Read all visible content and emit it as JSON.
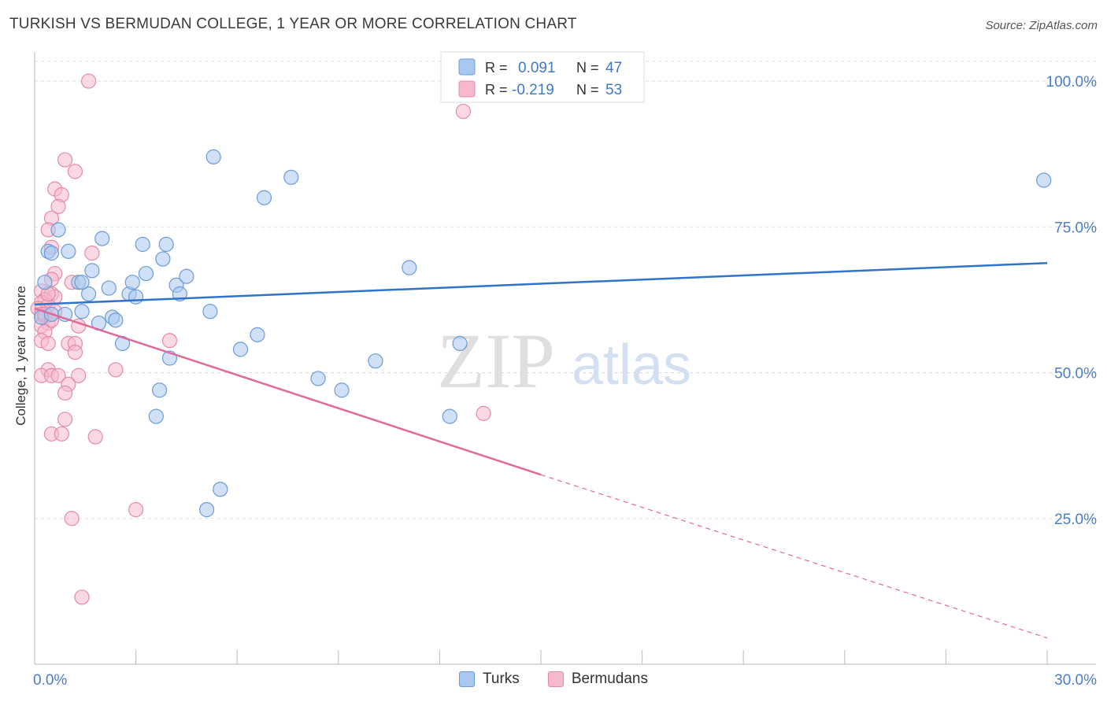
{
  "title": "TURKISH VS BERMUDAN COLLEGE, 1 YEAR OR MORE CORRELATION CHART",
  "source": "Source: ZipAtlas.com",
  "watermark": {
    "zip": "ZIP",
    "atlas": "atlas"
  },
  "colors": {
    "turks_fill": "#a9c8f0",
    "turks_stroke": "#6b9bd6",
    "turks_line": "#2f74c9",
    "berm_fill": "#f6b9cc",
    "berm_stroke": "#e48aa8",
    "berm_line": "#e0699a",
    "axis_label": "#4a7cc8",
    "grid": "#dddddd"
  },
  "stats_legend": [
    {
      "series": "Turks",
      "r_label": "R =",
      "r_value": "0.091",
      "n_label": "N =",
      "n_value": "47"
    },
    {
      "series": "Bermudans",
      "r_label": "R =",
      "r_value": "-0.219",
      "n_label": "N =",
      "n_value": "53"
    }
  ],
  "bottom_legend": [
    "Turks",
    "Bermudans"
  ],
  "chart_data": {
    "type": "scatter",
    "xlabel": "",
    "ylabel": "College, 1 year or more",
    "xlim": [
      0,
      30
    ],
    "ylim": [
      0,
      105
    ],
    "x_tick_labels": [
      {
        "value": 0,
        "label": "0.0%"
      },
      {
        "value": 30,
        "label": "30.0%"
      }
    ],
    "y_tick_labels": [
      {
        "value": 25,
        "label": "25.0%"
      },
      {
        "value": 50,
        "label": "50.0%"
      },
      {
        "value": 75,
        "label": "75.0%"
      },
      {
        "value": 100,
        "label": "100.0%"
      }
    ],
    "x_minor_ticks": [
      3,
      6,
      9,
      12,
      15,
      18,
      21,
      24,
      27,
      30
    ],
    "series": [
      {
        "name": "Turks",
        "points": [
          [
            0.3,
            65.5
          ],
          [
            0.4,
            70.8
          ],
          [
            0.5,
            70.5
          ],
          [
            0.7,
            74.5
          ],
          [
            1.0,
            70.8
          ],
          [
            1.3,
            65.5
          ],
          [
            1.4,
            60.5
          ],
          [
            1.6,
            63.5
          ],
          [
            1.7,
            67.5
          ],
          [
            1.9,
            58.5
          ],
          [
            2.0,
            73.0
          ],
          [
            2.2,
            64.5
          ],
          [
            2.3,
            59.5
          ],
          [
            2.4,
            59.0
          ],
          [
            2.6,
            55.0
          ],
          [
            2.8,
            63.5
          ],
          [
            2.9,
            65.5
          ],
          [
            3.0,
            63.0
          ],
          [
            3.2,
            72.0
          ],
          [
            3.3,
            67.0
          ],
          [
            3.6,
            42.5
          ],
          [
            3.7,
            47.0
          ],
          [
            3.8,
            69.5
          ],
          [
            3.9,
            72.0
          ],
          [
            4.0,
            52.5
          ],
          [
            4.2,
            65.0
          ],
          [
            4.3,
            63.5
          ],
          [
            4.5,
            66.5
          ],
          [
            5.1,
            26.5
          ],
          [
            5.2,
            60.5
          ],
          [
            5.3,
            87.0
          ],
          [
            5.5,
            30.0
          ],
          [
            6.1,
            54.0
          ],
          [
            6.6,
            56.5
          ],
          [
            6.8,
            80.0
          ],
          [
            7.6,
            83.5
          ],
          [
            8.4,
            49.0
          ],
          [
            9.1,
            47.0
          ],
          [
            10.1,
            52.0
          ],
          [
            11.1,
            68.0
          ],
          [
            12.3,
            42.5
          ],
          [
            12.6,
            55.0
          ],
          [
            29.9,
            83.0
          ],
          [
            0.2,
            59.5
          ],
          [
            0.5,
            60.0
          ],
          [
            1.4,
            65.5
          ],
          [
            0.9,
            60.0
          ]
        ],
        "trend": {
          "x0": 0,
          "y0": 61.7,
          "x1": 30,
          "y1": 68.8
        }
      },
      {
        "name": "Bermudans",
        "points": [
          [
            1.6,
            100.0
          ],
          [
            0.9,
            86.5
          ],
          [
            1.2,
            84.5
          ],
          [
            0.6,
            81.5
          ],
          [
            0.8,
            80.5
          ],
          [
            0.7,
            78.5
          ],
          [
            0.5,
            76.5
          ],
          [
            0.4,
            74.5
          ],
          [
            0.5,
            71.5
          ],
          [
            1.7,
            70.5
          ],
          [
            0.6,
            67.0
          ],
          [
            0.5,
            66.0
          ],
          [
            1.1,
            65.5
          ],
          [
            0.2,
            64.0
          ],
          [
            0.5,
            63.5
          ],
          [
            0.6,
            63.0
          ],
          [
            0.3,
            62.5
          ],
          [
            0.2,
            62.0
          ],
          [
            0.4,
            61.5
          ],
          [
            0.1,
            61.0
          ],
          [
            0.6,
            60.5
          ],
          [
            0.2,
            60.0
          ],
          [
            0.3,
            59.5
          ],
          [
            0.4,
            58.5
          ],
          [
            0.2,
            58.0
          ],
          [
            1.3,
            58.0
          ],
          [
            0.3,
            57.0
          ],
          [
            0.2,
            55.5
          ],
          [
            1.0,
            55.0
          ],
          [
            1.2,
            55.0
          ],
          [
            0.4,
            55.0
          ],
          [
            1.2,
            53.5
          ],
          [
            0.4,
            50.5
          ],
          [
            2.4,
            50.5
          ],
          [
            0.2,
            49.5
          ],
          [
            0.5,
            49.5
          ],
          [
            0.7,
            49.5
          ],
          [
            1.3,
            49.5
          ],
          [
            1.0,
            48.0
          ],
          [
            0.9,
            46.5
          ],
          [
            4.0,
            55.5
          ],
          [
            0.9,
            42.0
          ],
          [
            0.5,
            39.5
          ],
          [
            0.8,
            39.5
          ],
          [
            1.8,
            39.0
          ],
          [
            13.3,
            43.0
          ],
          [
            3.0,
            26.5
          ],
          [
            1.1,
            25.0
          ],
          [
            1.4,
            11.5
          ],
          [
            0.4,
            63.5
          ],
          [
            0.3,
            60.0
          ],
          [
            0.5,
            59.0
          ],
          [
            12.7,
            94.8
          ]
        ],
        "trend": {
          "x0": 0,
          "y0": 61.0,
          "x1": 15,
          "y1": 32.5
        },
        "trend_ext": {
          "x0": 15,
          "y0": 32.5,
          "x1": 30,
          "y1": 4.5
        }
      }
    ]
  }
}
